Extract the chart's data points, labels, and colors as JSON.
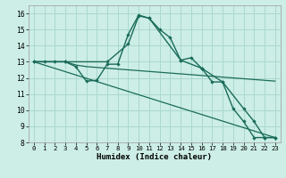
{
  "xlabel": "Humidex (Indice chaleur)",
  "background_color": "#cceee6",
  "grid_color": "#aad8ce",
  "line_color": "#1a6b5a",
  "xlim": [
    -0.5,
    23.5
  ],
  "ylim": [
    8,
    16.5
  ],
  "yticks": [
    8,
    9,
    10,
    11,
    12,
    13,
    14,
    15,
    16
  ],
  "xticks": [
    0,
    1,
    2,
    3,
    4,
    5,
    6,
    7,
    8,
    9,
    10,
    11,
    12,
    13,
    14,
    15,
    16,
    17,
    18,
    19,
    20,
    21,
    22,
    23
  ],
  "line1_x": [
    0,
    1,
    2,
    3,
    4,
    5,
    6,
    7,
    8,
    9,
    10,
    11,
    12,
    13,
    14,
    15,
    16,
    17,
    18,
    19,
    20,
    21,
    22,
    23
  ],
  "line1_y": [
    13,
    13,
    13,
    13,
    12.7,
    11.8,
    11.85,
    12.85,
    12.85,
    14.7,
    15.9,
    15.7,
    15.0,
    14.5,
    13.1,
    13.25,
    12.6,
    11.75,
    11.75,
    10.1,
    9.3,
    8.3,
    8.3,
    8.3
  ],
  "line2_x": [
    0,
    3,
    7,
    9,
    10,
    11,
    14,
    16,
    18,
    20,
    21,
    22,
    23
  ],
  "line2_y": [
    13,
    13,
    13,
    14.1,
    15.85,
    15.7,
    13.1,
    12.6,
    11.75,
    10.1,
    9.3,
    8.3,
    8.3
  ],
  "line3_x": [
    0,
    1,
    2,
    3,
    4,
    5,
    6,
    7,
    8,
    9,
    10,
    11,
    12,
    13,
    14,
    15,
    16,
    17,
    18,
    19,
    20,
    21,
    22,
    23
  ],
  "line3_y": [
    13,
    13,
    13,
    13,
    12.8,
    12.7,
    12.65,
    12.6,
    12.55,
    12.5,
    12.45,
    12.4,
    12.35,
    12.3,
    12.25,
    12.2,
    12.15,
    12.1,
    12.05,
    12.0,
    11.95,
    11.9,
    11.85,
    11.8
  ],
  "line4_x": [
    0,
    23
  ],
  "line4_y": [
    13,
    8.3
  ]
}
